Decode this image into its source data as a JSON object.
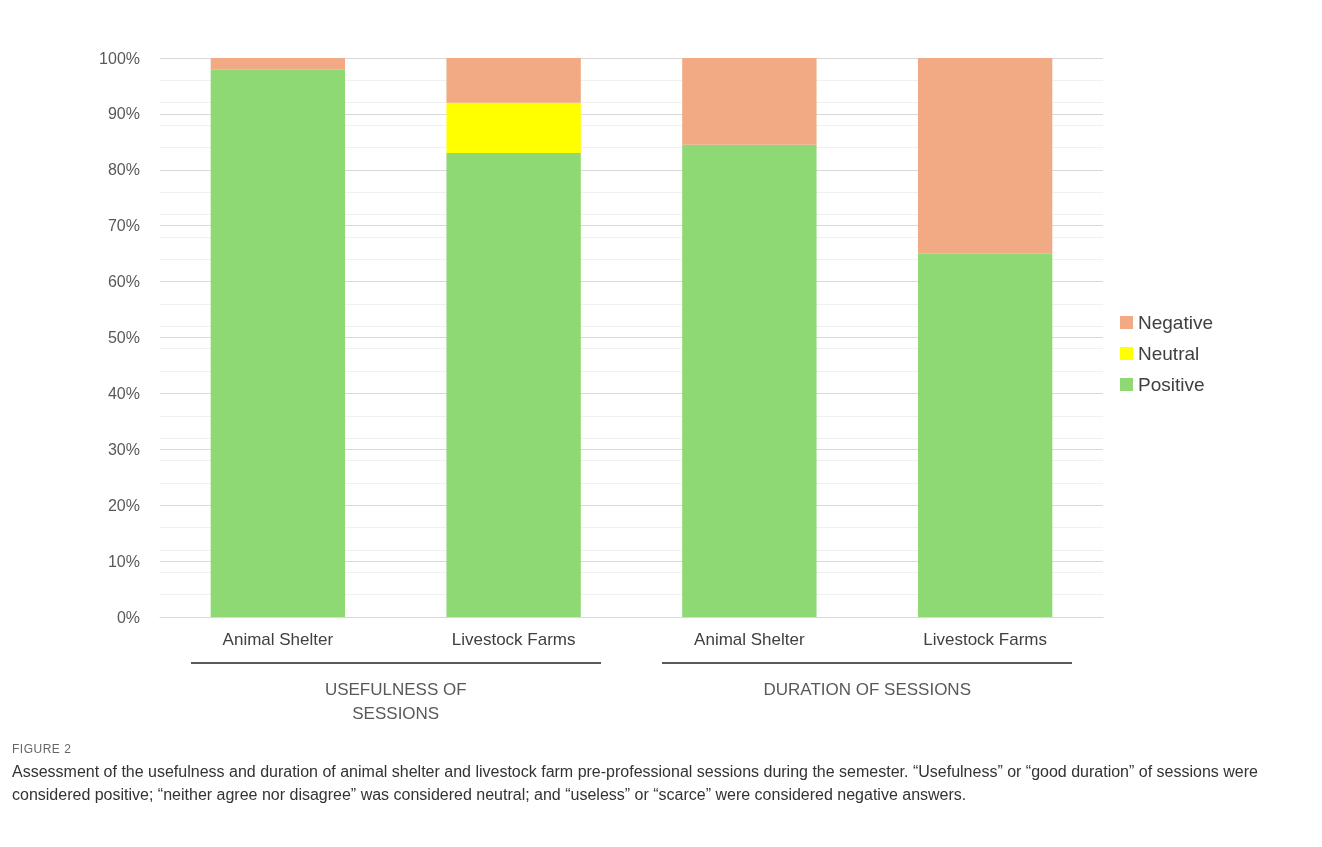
{
  "chart_data": {
    "type": "bar",
    "stacked": true,
    "title": "FIGURE 2",
    "subtitle": "Assessment of the usefulness and duration of animal shelter and livestock farm pre-professional sessions during the semester. “Usefulness” or “good duration” of sessions were considered positive; “neither agree nor disagree” was considered neutral; and “useless” or “scarce” were considered negative answers.",
    "annotations": [
      "USEFULNESS OF SESSIONS",
      "DURATION OF SESSIONS"
    ],
    "categories": [
      "Animal Shelter",
      "Livestock Farms",
      "Animal Shelter",
      "Livestock Farms"
    ],
    "series": [
      {
        "name": "Positive",
        "color": "#8fd974",
        "values": [
          98,
          83,
          84.5,
          65
        ]
      },
      {
        "name": "Neutral",
        "color": "#ffff00",
        "values": [
          0,
          9,
          0,
          0
        ]
      },
      {
        "name": "Negative",
        "color": "#f1aa84",
        "values": [
          2,
          8,
          15.5,
          35
        ]
      }
    ],
    "ylim": [
      0,
      100
    ],
    "yticks": [
      {
        "value": 0,
        "label": "0%"
      },
      {
        "value": 10,
        "label": "10%"
      },
      {
        "value": 20,
        "label": "20%"
      },
      {
        "value": 30,
        "label": "30%"
      },
      {
        "value": 40,
        "label": "40%"
      },
      {
        "value": 50,
        "label": "50%"
      },
      {
        "value": 60,
        "label": "60%"
      },
      {
        "value": 70,
        "label": "70%"
      },
      {
        "value": 80,
        "label": "80%"
      },
      {
        "value": 90,
        "label": "90%"
      },
      {
        "value": 100,
        "label": "100%"
      }
    ],
    "grid": "y",
    "legend": "right"
  }
}
